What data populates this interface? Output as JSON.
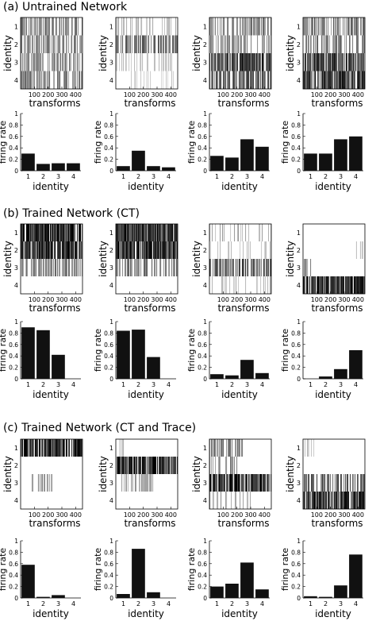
{
  "section_titles": [
    "(a) Untrained Network",
    "(b) Trained Network (CT)",
    "(c) Trained Network (CT and Trace)"
  ],
  "chart_data": {
    "heatmap": {
      "type": "heatmap",
      "ylabel": "identity",
      "xlabel": "transforms",
      "yticks": [
        "1",
        "2",
        "3",
        "4"
      ],
      "xticks": [
        "100",
        "200",
        "300",
        "400"
      ],
      "xlim": [
        0,
        450
      ],
      "color_scale": "black = high firing rate, white = low"
    },
    "bar": {
      "type": "bar",
      "ylabel": "firing rate",
      "xlabel": "identity",
      "categories": [
        "1",
        "2",
        "3",
        "4"
      ],
      "ylim": [
        0,
        1
      ],
      "yticks": [
        "0",
        "0.2",
        "0.4",
        "0.6",
        "0.8",
        "1"
      ],
      "bar_color": "#111111"
    },
    "panels": [
      [
        {
          "bars": [
            0.3,
            0.12,
            0.13,
            0.13
          ],
          "rows": [
            {
              "level": 0.55,
              "density": 0.7,
              "span": [
                0,
                450
              ]
            },
            {
              "level": 0.5,
              "density": 0.6,
              "span": [
                0,
                450
              ]
            },
            {
              "level": 0.5,
              "density": 0.6,
              "span": [
                0,
                450
              ]
            },
            {
              "level": 0.55,
              "density": 0.65,
              "span": [
                0,
                450
              ]
            }
          ]
        },
        {
          "bars": [
            0.08,
            0.35,
            0.08,
            0.06
          ],
          "rows": [
            {
              "level": 0.3,
              "density": 0.35,
              "span": [
                0,
                450
              ]
            },
            {
              "level": 0.65,
              "density": 0.7,
              "span": [
                0,
                450
              ]
            },
            {
              "level": 0.25,
              "density": 0.35,
              "span": [
                0,
                450
              ]
            },
            {
              "level": 0.22,
              "density": 0.3,
              "span": [
                0,
                450
              ]
            }
          ]
        },
        {
          "bars": [
            0.26,
            0.23,
            0.55,
            0.42
          ],
          "rows": [
            {
              "level": 0.55,
              "density": 0.6,
              "span": [
                0,
                450
              ]
            },
            {
              "level": 0.5,
              "density": 0.55,
              "span": [
                0,
                450
              ]
            },
            {
              "level": 0.85,
              "density": 0.85,
              "span": [
                0,
                450
              ]
            },
            {
              "level": 0.7,
              "density": 0.75,
              "span": [
                0,
                450
              ]
            }
          ]
        },
        {
          "bars": [
            0.3,
            0.3,
            0.55,
            0.6
          ],
          "rows": [
            {
              "level": 0.6,
              "density": 0.65,
              "span": [
                0,
                450
              ]
            },
            {
              "level": 0.55,
              "density": 0.6,
              "span": [
                0,
                450
              ]
            },
            {
              "level": 0.85,
              "density": 0.85,
              "span": [
                0,
                450
              ]
            },
            {
              "level": 0.85,
              "density": 0.85,
              "span": [
                0,
                450
              ]
            }
          ]
        }
      ],
      [
        {
          "bars": [
            0.9,
            0.85,
            0.42,
            0.0
          ],
          "rows": [
            {
              "level": 0.95,
              "density": 0.9,
              "span": [
                0,
                450
              ]
            },
            {
              "level": 0.92,
              "density": 0.9,
              "span": [
                0,
                450
              ]
            },
            {
              "level": 0.55,
              "density": 0.6,
              "span": [
                0,
                450
              ]
            },
            {
              "level": 0.0,
              "density": 0.0,
              "span": [
                0,
                0
              ]
            }
          ]
        },
        {
          "bars": [
            0.84,
            0.86,
            0.38,
            0.0
          ],
          "rows": [
            {
              "level": 0.95,
              "density": 0.9,
              "span": [
                0,
                450
              ]
            },
            {
              "level": 0.92,
              "density": 0.9,
              "span": [
                0,
                450
              ]
            },
            {
              "level": 0.55,
              "density": 0.55,
              "span": [
                0,
                450
              ]
            },
            {
              "level": 0.0,
              "density": 0.0,
              "span": [
                0,
                0
              ]
            }
          ]
        },
        {
          "bars": [
            0.08,
            0.06,
            0.33,
            0.1
          ],
          "rows": [
            {
              "level": 0.35,
              "density": 0.35,
              "span": [
                0,
                450
              ]
            },
            {
              "level": 0.25,
              "density": 0.25,
              "span": [
                0,
                450
              ]
            },
            {
              "level": 0.75,
              "density": 0.7,
              "span": [
                0,
                450
              ]
            },
            {
              "level": 0.3,
              "density": 0.3,
              "span": [
                0,
                450
              ]
            }
          ]
        },
        {
          "bars": [
            0.0,
            0.04,
            0.17,
            0.5
          ],
          "rows": [
            {
              "level": 0.0,
              "density": 0.0,
              "span": [
                0,
                0
              ]
            },
            {
              "level": 0.25,
              "density": 0.2,
              "span": [
                380,
                450
              ]
            },
            {
              "level": 0.55,
              "density": 0.45,
              "span": [
                0,
                60
              ]
            },
            {
              "level": 0.95,
              "density": 0.9,
              "span": [
                0,
                450
              ]
            }
          ]
        }
      ],
      [
        {
          "bars": [
            0.58,
            0.02,
            0.05,
            0.0
          ],
          "rows": [
            {
              "level": 0.9,
              "density": 0.85,
              "span": [
                0,
                450
              ]
            },
            {
              "level": 0.0,
              "density": 0.0,
              "span": [
                0,
                0
              ]
            },
            {
              "level": 0.45,
              "density": 0.5,
              "span": [
                80,
                230
              ]
            },
            {
              "level": 0.0,
              "density": 0.0,
              "span": [
                0,
                0
              ]
            }
          ]
        },
        {
          "bars": [
            0.07,
            0.86,
            0.1,
            0.0
          ],
          "rows": [
            {
              "level": 0.3,
              "density": 0.25,
              "span": [
                0,
                60
              ]
            },
            {
              "level": 0.95,
              "density": 0.9,
              "span": [
                0,
                450
              ]
            },
            {
              "level": 0.4,
              "density": 0.4,
              "span": [
                0,
                280
              ]
            },
            {
              "level": 0.0,
              "density": 0.0,
              "span": [
                0,
                0
              ]
            }
          ]
        },
        {
          "bars": [
            0.2,
            0.25,
            0.62,
            0.15
          ],
          "rows": [
            {
              "level": 0.55,
              "density": 0.55,
              "span": [
                0,
                250
              ]
            },
            {
              "level": 0.5,
              "density": 0.45,
              "span": [
                0,
                200
              ]
            },
            {
              "level": 0.92,
              "density": 0.85,
              "span": [
                0,
                450
              ]
            },
            {
              "level": 0.4,
              "density": 0.4,
              "span": [
                0,
                300
              ]
            }
          ]
        },
        {
          "bars": [
            0.03,
            0.02,
            0.22,
            0.76
          ],
          "rows": [
            {
              "level": 0.25,
              "density": 0.2,
              "span": [
                0,
                80
              ]
            },
            {
              "level": 0.0,
              "density": 0.0,
              "span": [
                0,
                0
              ]
            },
            {
              "level": 0.7,
              "density": 0.6,
              "span": [
                0,
                450
              ]
            },
            {
              "level": 0.9,
              "density": 0.85,
              "span": [
                0,
                450
              ]
            }
          ]
        }
      ]
    ]
  }
}
